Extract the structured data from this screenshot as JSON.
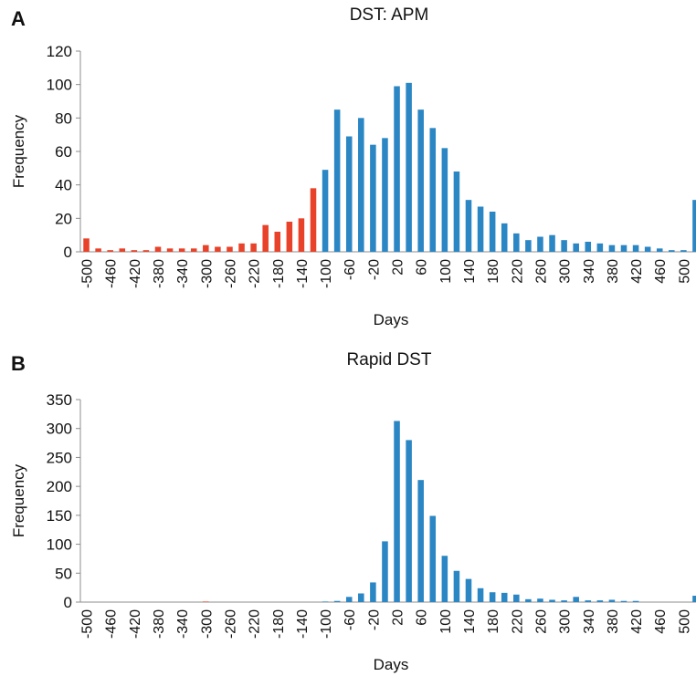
{
  "panels": [
    {
      "letter": "A",
      "title": "DST: APM"
    },
    {
      "letter": "B",
      "title": "Rapid DST"
    }
  ],
  "colors": {
    "negative": "#e8432a",
    "positive": "#2b86c4",
    "axis": "#8c8c8c"
  },
  "chart_data": [
    {
      "type": "bar",
      "title": "DST: APM",
      "xlabel": "Days",
      "ylabel": "Frequency",
      "ylim": [
        0,
        120
      ],
      "yticks": [
        0,
        20,
        40,
        60,
        80,
        100,
        120
      ],
      "grid": false,
      "legend": "none",
      "x": [
        -500,
        -480,
        -460,
        -440,
        -420,
        -400,
        -380,
        -360,
        -340,
        -320,
        -300,
        -280,
        -260,
        -240,
        -220,
        -200,
        -180,
        -160,
        -140,
        -120,
        -100,
        -80,
        -60,
        -40,
        -20,
        0,
        20,
        40,
        60,
        80,
        100,
        120,
        140,
        160,
        180,
        200,
        220,
        240,
        260,
        280,
        300,
        320,
        340,
        360,
        380,
        400,
        420,
        440,
        460,
        480,
        500,
        520
      ],
      "tick_labels": [
        "-500",
        "-460",
        "-420",
        "-380",
        "-340",
        "-300",
        "-260",
        "-220",
        "-180",
        "-140",
        "-100",
        "-60",
        "-20",
        "20",
        "60",
        "100",
        "140",
        "180",
        "220",
        "260",
        "300",
        "340",
        "380",
        "420",
        "460",
        "500"
      ],
      "values": [
        8,
        2,
        1,
        2,
        1,
        1,
        3,
        2,
        2,
        2,
        4,
        3,
        3,
        5,
        5,
        16,
        12,
        18,
        20,
        38,
        49,
        85,
        69,
        80,
        64,
        68,
        99,
        101,
        85,
        74,
        62,
        48,
        31,
        27,
        24,
        17,
        11,
        7,
        9,
        10,
        7,
        5,
        6,
        5,
        4,
        4,
        4,
        3,
        2,
        1,
        1,
        31
      ],
      "series_split_at": 20
    },
    {
      "type": "bar",
      "title": "Rapid DST",
      "xlabel": "Days",
      "ylabel": "Frequency",
      "ylim": [
        0,
        350
      ],
      "yticks": [
        0,
        50,
        100,
        150,
        200,
        250,
        300,
        350
      ],
      "grid": false,
      "legend": "none",
      "x": [
        -500,
        -480,
        -460,
        -440,
        -420,
        -400,
        -380,
        -360,
        -340,
        -320,
        -300,
        -280,
        -260,
        -240,
        -220,
        -200,
        -180,
        -160,
        -140,
        -120,
        -100,
        -80,
        -60,
        -40,
        -20,
        0,
        20,
        40,
        60,
        80,
        100,
        120,
        140,
        160,
        180,
        200,
        220,
        240,
        260,
        280,
        300,
        320,
        340,
        360,
        380,
        400,
        420,
        440,
        460,
        480,
        500,
        520
      ],
      "tick_labels": [
        "-500",
        "-460",
        "-420",
        "-380",
        "-340",
        "-300",
        "-260",
        "-220",
        "-180",
        "-140",
        "-100",
        "-60",
        "-20",
        "20",
        "60",
        "100",
        "140",
        "180",
        "220",
        "260",
        "300",
        "340",
        "380",
        "420",
        "460",
        "500"
      ],
      "values": [
        0,
        0,
        0,
        0,
        0,
        0,
        0,
        0,
        0,
        0,
        1,
        0,
        0,
        0,
        0,
        0,
        0,
        0,
        0,
        0,
        1,
        2,
        9,
        15,
        34,
        105,
        313,
        280,
        211,
        149,
        80,
        54,
        40,
        24,
        17,
        16,
        13,
        5,
        6,
        4,
        3,
        9,
        3,
        3,
        4,
        2,
        2,
        0,
        0,
        0,
        0,
        11
      ],
      "series_split_at": 20
    }
  ]
}
